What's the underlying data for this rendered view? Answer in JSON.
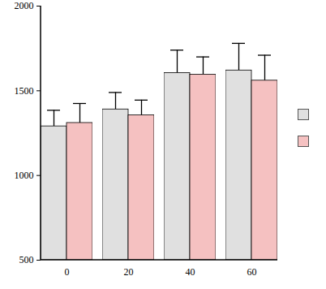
{
  "chart_data": {
    "type": "bar",
    "categories": [
      "0",
      "20",
      "40",
      "60"
    ],
    "series": [
      {
        "color": "#e0e0e0",
        "values": [
          1290,
          1390,
          1605,
          1620
        ],
        "errors": [
          95,
          100,
          135,
          160
        ]
      },
      {
        "color": "#f5c1c1",
        "values": [
          1310,
          1355,
          1595,
          1560
        ],
        "errors": [
          115,
          90,
          105,
          150
        ]
      }
    ],
    "ylim": [
      500,
      2000
    ],
    "yticks": [
      500,
      1000,
      1500,
      2000
    ],
    "legend": "right"
  }
}
